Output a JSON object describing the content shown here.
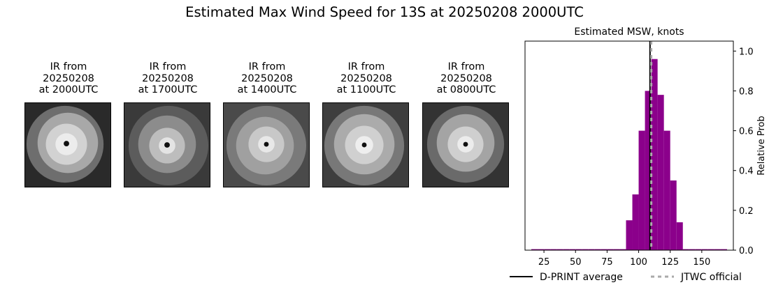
{
  "title": "Estimated Max Wind Speed for 13S at 20250208 2000UTC",
  "ir_panels": [
    {
      "title_lines": [
        "IR from",
        "20250208",
        "at 2000UTC"
      ],
      "cloud_tone": "bright"
    },
    {
      "title_lines": [
        "IR from",
        "20250208",
        "at 1700UTC"
      ],
      "cloud_tone": "banded"
    },
    {
      "title_lines": [
        "IR from",
        "20250208",
        "at 1400UTC"
      ],
      "cloud_tone": "banded"
    },
    {
      "title_lines": [
        "IR from",
        "20250208",
        "at 1100UTC"
      ],
      "cloud_tone": "bright"
    },
    {
      "title_lines": [
        "IR from",
        "20250208",
        "at 0800UTC"
      ],
      "cloud_tone": "bright"
    }
  ],
  "chart_data": {
    "type": "bar",
    "title": "Estimated MSW, knots",
    "xlabel": "",
    "ylabel": "Relative Prob",
    "xlim": [
      10,
      175
    ],
    "ylim": [
      0,
      1.05
    ],
    "x_ticks": [
      25,
      50,
      75,
      100,
      125,
      150
    ],
    "y_ticks": [
      0.0,
      0.2,
      0.4,
      0.6,
      0.8,
      1.0
    ],
    "y_tick_labels": [
      "0.0",
      "0.2",
      "0.4",
      "0.6",
      "0.8",
      "1.0"
    ],
    "bar_color": "#8b008b",
    "bin_width": 5,
    "bins": [
      {
        "x": 17.5,
        "value": 0.005
      },
      {
        "x": 22.5,
        "value": 0.005
      },
      {
        "x": 27.5,
        "value": 0.005
      },
      {
        "x": 32.5,
        "value": 0.005
      },
      {
        "x": 37.5,
        "value": 0.005
      },
      {
        "x": 42.5,
        "value": 0.005
      },
      {
        "x": 47.5,
        "value": 0.005
      },
      {
        "x": 52.5,
        "value": 0.005
      },
      {
        "x": 57.5,
        "value": 0.005
      },
      {
        "x": 62.5,
        "value": 0.005
      },
      {
        "x": 67.5,
        "value": 0.005
      },
      {
        "x": 72.5,
        "value": 0.005
      },
      {
        "x": 77.5,
        "value": 0.005
      },
      {
        "x": 82.5,
        "value": 0.005
      },
      {
        "x": 87.5,
        "value": 0.005
      },
      {
        "x": 92.5,
        "value": 0.15
      },
      {
        "x": 97.5,
        "value": 0.28
      },
      {
        "x": 102.5,
        "value": 0.6
      },
      {
        "x": 107.5,
        "value": 0.8
      },
      {
        "x": 112.5,
        "value": 0.96
      },
      {
        "x": 117.5,
        "value": 0.78
      },
      {
        "x": 122.5,
        "value": 0.6
      },
      {
        "x": 127.5,
        "value": 0.35
      },
      {
        "x": 132.5,
        "value": 0.14
      },
      {
        "x": 137.5,
        "value": 0.005
      },
      {
        "x": 142.5,
        "value": 0.005
      },
      {
        "x": 147.5,
        "value": 0.005
      },
      {
        "x": 152.5,
        "value": 0.005
      },
      {
        "x": 157.5,
        "value": 0.005
      },
      {
        "x": 162.5,
        "value": 0.005
      },
      {
        "x": 167.5,
        "value": 0.005
      }
    ],
    "dprint_average": 109,
    "jtwc_official": 110,
    "grid": false,
    "legend_placement": "bottom",
    "legend": [
      {
        "label": "D-PRINT average",
        "color": "#000000",
        "style": "solid"
      },
      {
        "label": "JTWC official",
        "color": "#aaaaaa",
        "style": "dashed"
      }
    ]
  }
}
